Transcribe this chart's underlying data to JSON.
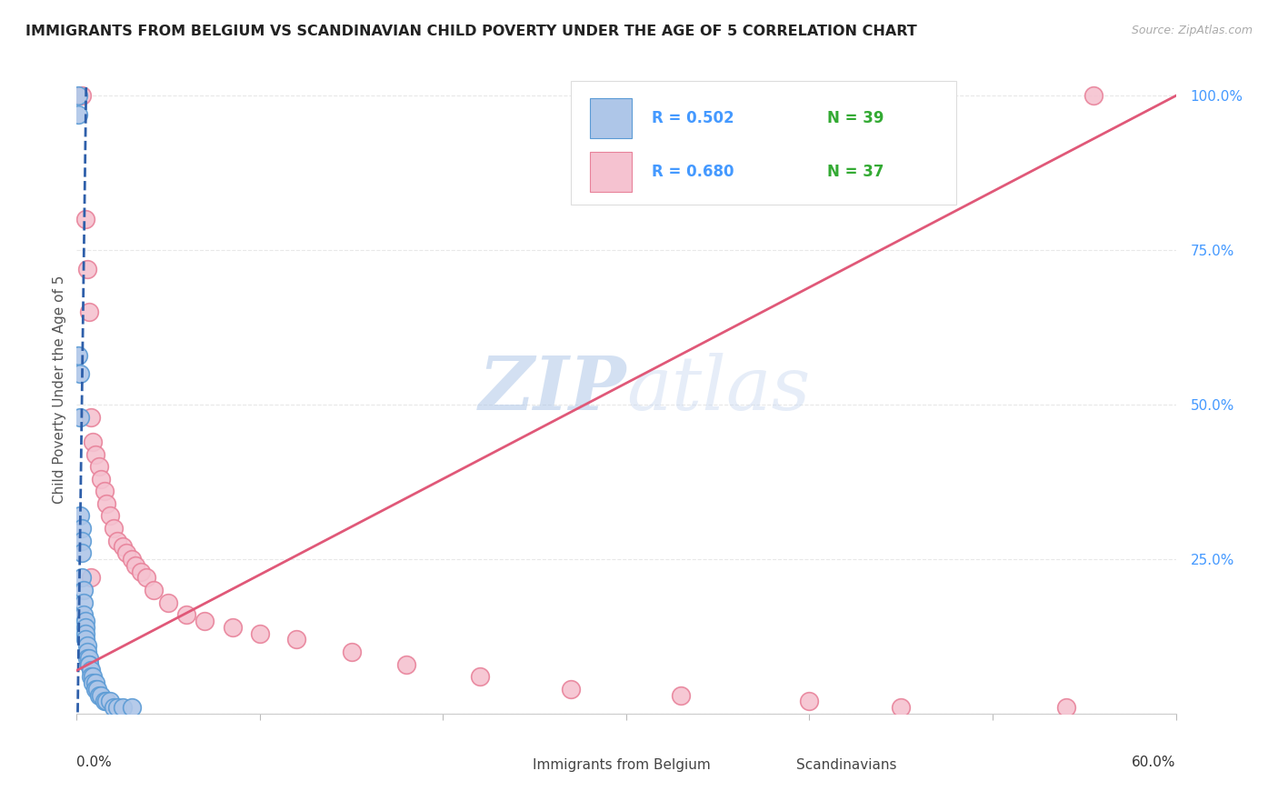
{
  "title": "IMMIGRANTS FROM BELGIUM VS SCANDINAVIAN CHILD POVERTY UNDER THE AGE OF 5 CORRELATION CHART",
  "source": "Source: ZipAtlas.com",
  "ylabel": "Child Poverty Under the Age of 5",
  "xlim": [
    0.0,
    0.6
  ],
  "ylim": [
    0.0,
    1.05
  ],
  "watermark_zip": "ZIP",
  "watermark_atlas": "atlas",
  "legend_R1": "R = 0.502",
  "legend_N1": "N = 39",
  "legend_R2": "R = 0.680",
  "legend_N2": "N = 37",
  "blue_fill": "#aec6e8",
  "blue_edge": "#5b9bd5",
  "pink_fill": "#f5c2d0",
  "pink_edge": "#e8829a",
  "blue_line_color": "#2e5faa",
  "pink_line_color": "#e05878",
  "grid_color": "#e8e8e8",
  "ytick_color": "#4499ff",
  "background_color": "#ffffff",
  "belgium_x": [
    0.001,
    0.001,
    0.002,
    0.002,
    0.002,
    0.003,
    0.003,
    0.003,
    0.003,
    0.004,
    0.004,
    0.004,
    0.005,
    0.005,
    0.005,
    0.005,
    0.006,
    0.006,
    0.006,
    0.007,
    0.007,
    0.007,
    0.008,
    0.008,
    0.009,
    0.009,
    0.01,
    0.01,
    0.011,
    0.012,
    0.013,
    0.015,
    0.016,
    0.018,
    0.02,
    0.022,
    0.025,
    0.03,
    0.001
  ],
  "belgium_y": [
    1.0,
    0.97,
    0.55,
    0.48,
    0.32,
    0.3,
    0.28,
    0.26,
    0.22,
    0.2,
    0.18,
    0.16,
    0.15,
    0.14,
    0.13,
    0.12,
    0.11,
    0.1,
    0.09,
    0.09,
    0.08,
    0.08,
    0.07,
    0.06,
    0.06,
    0.05,
    0.05,
    0.04,
    0.04,
    0.03,
    0.03,
    0.02,
    0.02,
    0.02,
    0.01,
    0.01,
    0.01,
    0.01,
    0.58
  ],
  "scandinavian_x": [
    0.003,
    0.005,
    0.006,
    0.007,
    0.008,
    0.009,
    0.01,
    0.012,
    0.013,
    0.015,
    0.016,
    0.018,
    0.02,
    0.022,
    0.025,
    0.027,
    0.03,
    0.032,
    0.035,
    0.038,
    0.042,
    0.05,
    0.06,
    0.07,
    0.085,
    0.1,
    0.12,
    0.15,
    0.18,
    0.22,
    0.27,
    0.33,
    0.4,
    0.45,
    0.54,
    0.555,
    0.008
  ],
  "scandinavian_y": [
    1.0,
    0.8,
    0.72,
    0.65,
    0.48,
    0.44,
    0.42,
    0.4,
    0.38,
    0.36,
    0.34,
    0.32,
    0.3,
    0.28,
    0.27,
    0.26,
    0.25,
    0.24,
    0.23,
    0.22,
    0.2,
    0.18,
    0.16,
    0.15,
    0.14,
    0.13,
    0.12,
    0.1,
    0.08,
    0.06,
    0.04,
    0.03,
    0.02,
    0.01,
    0.01,
    1.0,
    0.22
  ]
}
